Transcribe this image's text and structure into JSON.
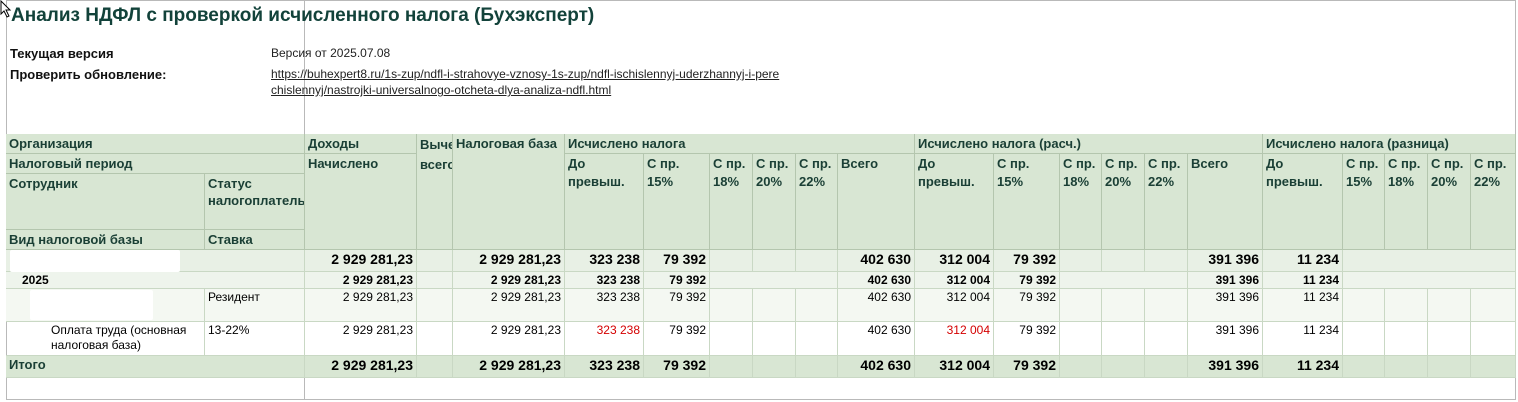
{
  "report": {
    "title": "Анализ НДФЛ с проверкой исчисленного налога (Бухэксперт)",
    "version_label": "Текущая версия",
    "version_value": "Версия от 2025.07.08",
    "update_label": "Проверить обновление:",
    "update_link_line1": "https://buhexpert8.ru/1s-zup/ndfl-i-strahovye-vznosy-1s-zup/ndfl-ischislennyj-uderzhannyj-i-pere",
    "update_link_line2": "chislennyj/nastrojki-universalnogo-otcheta-dlya-analiza-ndfl.html"
  },
  "headers": {
    "org": "Организация",
    "period": "Налоговый период",
    "employee": "Сотрудник",
    "status": "Статус налогоплательщика",
    "base_type": "Вид налоговой базы",
    "rate": "Ставка",
    "income": "Доходы",
    "accrued": "Начислено",
    "deductions": "Вычеты всего",
    "tax_base": "Налоговая база",
    "calc_group": "Исчислено налога",
    "calc_r_group": "Исчислено налога (расч.)",
    "diff_group": "Исчислено налога (разница)",
    "sub_before": "До превыш.",
    "sub_15": "С пр. 15%",
    "sub_18": "С пр. 18%",
    "sub_20": "С пр. 20%",
    "sub_22": "С пр. 22%",
    "sub_total": "Всего"
  },
  "rows": {
    "grand": {
      "accrued": "2 929 281,23",
      "tax_base": "2 929 281,23",
      "before": "323 238",
      "p15": "79 392",
      "total": "402 630",
      "r_before": "312 004",
      "r_p15": "79 392",
      "r_total": "391 396",
      "d_before": "11 234"
    },
    "year": {
      "label": "2025",
      "accrued": "2 929 281,23",
      "tax_base": "2 929 281,23",
      "before": "323 238",
      "p15": "79 392",
      "total": "402 630",
      "r_before": "312 004",
      "r_p15": "79 392",
      "r_total": "391 396",
      "d_before": "11 234"
    },
    "employee": {
      "status": "Резидент",
      "accrued": "2 929 281,23",
      "tax_base": "2 929 281,23",
      "before": "323 238",
      "p15": "79 392",
      "total": "402 630",
      "r_before": "312 004",
      "r_p15": "79 392",
      "r_total": "391 396",
      "d_before": "11 234"
    },
    "base": {
      "label": "Оплата труда (основная налоговая база)",
      "rate": "13-22%",
      "accrued": "2 929 281,23",
      "tax_base": "2 929 281,23",
      "before": "323 238",
      "p15": "79 392",
      "total": "402 630",
      "r_before": "312 004",
      "r_p15": "79 392",
      "r_total": "391 396",
      "d_before": "11 234"
    },
    "total": {
      "label": "Итого",
      "accrued": "2 929 281,23",
      "tax_base": "2 929 281,23",
      "before": "323 238",
      "p15": "79 392",
      "total": "402 630",
      "r_before": "312 004",
      "r_p15": "79 392",
      "r_total": "391 396",
      "d_before": "11 234"
    }
  },
  "colors": {
    "header_bg": "#d8e6d3",
    "row_total_bg": "#e8f0e5",
    "title": "#12423a",
    "mismatch": "#d40000"
  }
}
